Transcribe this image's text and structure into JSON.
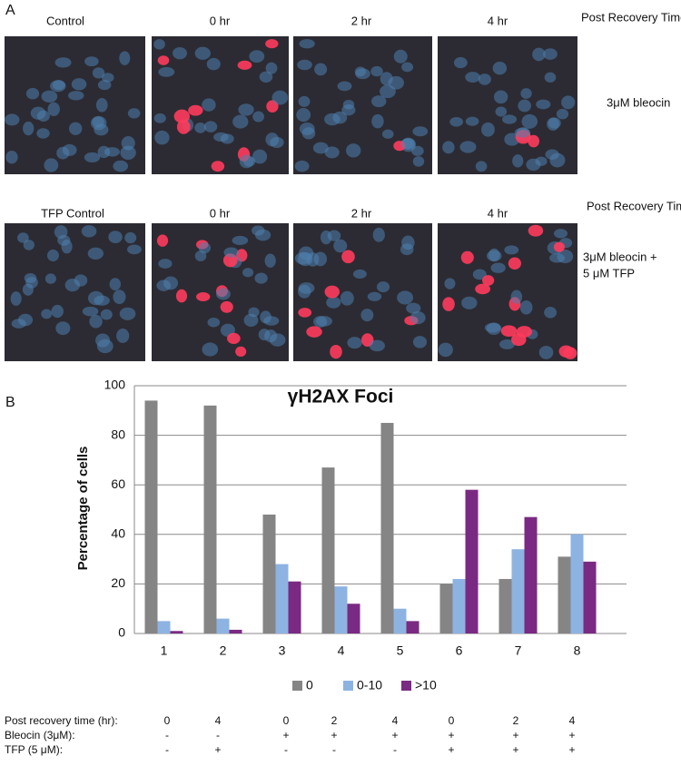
{
  "panel_a": {
    "label": "A",
    "row1": {
      "headers": [
        "Control",
        "0 hr",
        "2 hr",
        "4 hr"
      ],
      "time_label": "Post Recovery Time",
      "treatment": "3μM bleocin"
    },
    "row2": {
      "headers": [
        "TFP Control",
        "0 hr",
        "2 hr",
        "4 hr"
      ],
      "time_label": "Post Recovery Time",
      "treatment": [
        "3μM bleocin +",
        "5 μM TFP"
      ]
    }
  },
  "panel_b": {
    "label": "B"
  },
  "chart_data": {
    "type": "bar",
    "title": "γH2AX Foci",
    "y_label": "Percentage of cells",
    "categories": [
      "1",
      "2",
      "3",
      "4",
      "5",
      "6",
      "7",
      "8"
    ],
    "series": [
      {
        "name": "0",
        "color": "#858585",
        "values": [
          94,
          92,
          48,
          67,
          85,
          20,
          22,
          31
        ]
      },
      {
        "name": "0-10",
        "color": "#8db3e2",
        "values": [
          5,
          6,
          28,
          19,
          10,
          22,
          34,
          40
        ]
      },
      {
        "name": ">10",
        "color": "#7a2a82",
        "values": [
          1,
          1.5,
          21,
          12,
          5,
          58,
          47,
          29
        ]
      }
    ],
    "ylim": [
      0,
      100
    ],
    "yticks": [
      0,
      20,
      40,
      60,
      80,
      100
    ],
    "grid": true,
    "legend": "bottom"
  },
  "conditions": {
    "rows": [
      {
        "label": "Post recovery time (hr):",
        "values": [
          "0",
          "4",
          "0",
          "2",
          "4",
          "0",
          "2",
          "4"
        ]
      },
      {
        "label": "Bleocin (3μM):",
        "values": [
          "-",
          "-",
          "+",
          "+",
          "+",
          "+",
          "+",
          "+"
        ]
      },
      {
        "label": "TFP (5 μM):",
        "values": [
          "-",
          "+",
          "-",
          "-",
          "-",
          "+",
          "+",
          "+"
        ]
      }
    ]
  }
}
